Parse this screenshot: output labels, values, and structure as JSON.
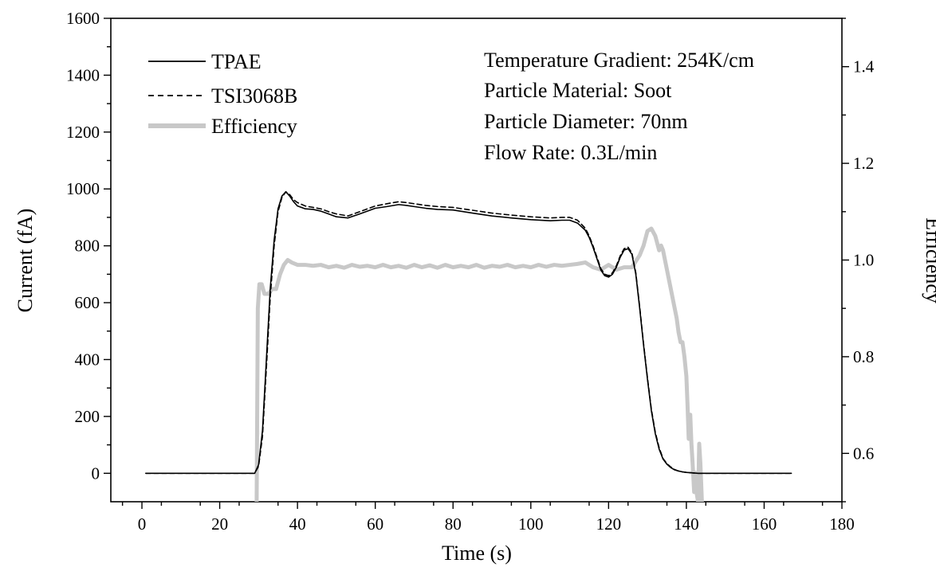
{
  "chart_data": {
    "type": "line",
    "xlabel": "Time (s)",
    "ylabel": "Current (fA)",
    "y2label": "Efficiency",
    "xlim": [
      -8,
      180
    ],
    "ylim": [
      -100,
      1600
    ],
    "y2lim": [
      0.5,
      1.5
    ],
    "xticks": [
      0,
      20,
      40,
      60,
      80,
      100,
      120,
      140,
      160,
      180
    ],
    "yticks": [
      0,
      200,
      400,
      600,
      800,
      1000,
      1200,
      1400,
      1600
    ],
    "y2ticks": [
      0.6,
      0.8,
      1.0,
      1.2,
      1.4
    ],
    "legend_position": "top-left",
    "annotations": [
      "Temperature Gradient: 254K/cm",
      "Particle Material: Soot",
      "Particle Diameter: 70nm",
      "Flow Rate: 0.3L/min"
    ],
    "series": [
      {
        "name": "TPAE",
        "axis": "left",
        "color": "#000000",
        "style": "solid",
        "x": [
          1,
          10,
          20,
          29,
          30,
          31,
          32,
          33,
          34,
          35,
          36,
          37,
          38,
          39,
          40,
          42,
          44,
          46,
          48,
          50,
          53,
          56,
          60,
          63,
          66,
          68,
          70,
          73,
          76,
          80,
          85,
          90,
          95,
          100,
          105,
          108,
          110,
          112,
          114,
          115,
          116,
          117,
          118,
          119,
          120,
          121,
          122,
          123,
          124,
          125,
          126,
          127,
          128,
          129,
          130,
          131,
          132,
          133,
          134,
          135,
          136,
          137,
          138,
          139,
          140,
          141,
          142,
          143,
          144,
          146,
          150,
          155,
          160,
          167
        ],
        "y": [
          0,
          0,
          0,
          0,
          30,
          150,
          400,
          650,
          820,
          930,
          975,
          990,
          975,
          955,
          940,
          930,
          928,
          922,
          912,
          902,
          898,
          912,
          932,
          938,
          945,
          942,
          938,
          932,
          928,
          926,
          915,
          905,
          898,
          892,
          888,
          890,
          890,
          880,
          855,
          830,
          795,
          755,
          715,
          695,
          690,
          700,
          725,
          760,
          785,
          790,
          770,
          700,
          580,
          450,
          330,
          220,
          140,
          85,
          50,
          32,
          20,
          12,
          8,
          5,
          3,
          2,
          1,
          0,
          0,
          0,
          0,
          0,
          0,
          0
        ]
      },
      {
        "name": "TSI3068B",
        "axis": "left",
        "color": "#000000",
        "style": "dashed",
        "x": [
          1,
          10,
          20,
          29,
          30,
          31,
          32,
          33,
          34,
          35,
          36,
          37,
          38,
          39,
          40,
          42,
          44,
          46,
          48,
          50,
          53,
          56,
          60,
          63,
          66,
          68,
          70,
          73,
          76,
          80,
          85,
          90,
          95,
          100,
          105,
          108,
          110,
          112,
          114,
          115,
          116,
          117,
          118,
          119,
          120,
          121,
          122,
          123,
          124,
          125,
          126,
          127,
          128,
          129,
          130,
          131,
          132,
          133,
          134,
          135,
          136,
          137,
          138,
          139,
          140,
          141,
          142,
          143,
          144,
          146,
          150,
          155,
          160,
          167
        ],
        "y": [
          0,
          0,
          0,
          0,
          25,
          130,
          370,
          620,
          800,
          920,
          970,
          990,
          980,
          962,
          952,
          940,
          935,
          930,
          920,
          912,
          905,
          920,
          940,
          948,
          955,
          952,
          948,
          942,
          938,
          935,
          925,
          915,
          908,
          902,
          898,
          900,
          900,
          890,
          862,
          835,
          800,
          760,
          720,
          700,
          695,
          705,
          730,
          765,
          790,
          795,
          775,
          705,
          585,
          455,
          335,
          225,
          145,
          90,
          52,
          34,
          22,
          13,
          8,
          5,
          3,
          2,
          1,
          0,
          0,
          0,
          0,
          0,
          0,
          0
        ]
      },
      {
        "name": "Efficiency",
        "axis": "right",
        "color": "#c8c8c8",
        "style": "solid",
        "x": [
          29.5,
          29.8,
          30.2,
          30.8,
          31.5,
          32.5,
          33.5,
          34.5,
          35.5,
          36.5,
          37.5,
          38.5,
          40,
          42,
          44,
          46,
          48,
          50,
          52,
          54,
          56,
          58,
          60,
          62,
          64,
          66,
          68,
          70,
          72,
          74,
          76,
          78,
          80,
          82,
          84,
          86,
          88,
          90,
          92,
          94,
          96,
          98,
          100,
          102,
          104,
          106,
          108,
          110,
          112,
          114,
          116,
          118,
          120,
          122,
          124,
          126,
          128,
          129,
          130,
          131,
          132,
          133,
          133.5,
          134,
          134.5,
          135,
          135.5,
          136,
          136.5,
          137,
          137.5,
          138,
          138.5,
          139,
          139.5,
          140,
          140.3,
          140.6,
          141,
          141.3,
          141.6,
          142,
          142.3,
          142.6,
          143,
          143.3,
          143.6,
          144,
          144.3
        ],
        "y": [
          0.5,
          0.9,
          0.95,
          0.95,
          0.93,
          0.93,
          0.94,
          0.94,
          0.97,
          0.99,
          1.0,
          0.995,
          0.99,
          0.99,
          0.988,
          0.99,
          0.985,
          0.988,
          0.984,
          0.99,
          0.986,
          0.988,
          0.985,
          0.99,
          0.985,
          0.988,
          0.984,
          0.99,
          0.985,
          0.989,
          0.984,
          0.99,
          0.985,
          0.988,
          0.985,
          0.99,
          0.984,
          0.988,
          0.986,
          0.99,
          0.985,
          0.988,
          0.985,
          0.99,
          0.986,
          0.99,
          0.988,
          0.99,
          0.992,
          0.995,
          0.985,
          0.98,
          0.99,
          0.98,
          0.985,
          0.985,
          1.01,
          1.03,
          1.06,
          1.065,
          1.05,
          1.02,
          1.03,
          1.02,
          1.0,
          0.98,
          0.96,
          0.94,
          0.92,
          0.9,
          0.88,
          0.85,
          0.83,
          0.83,
          0.8,
          0.76,
          0.7,
          0.63,
          0.68,
          0.62,
          0.58,
          0.52,
          0.56,
          0.52,
          0.5,
          0.62,
          0.58,
          0.5,
          0.45
        ]
      }
    ]
  }
}
